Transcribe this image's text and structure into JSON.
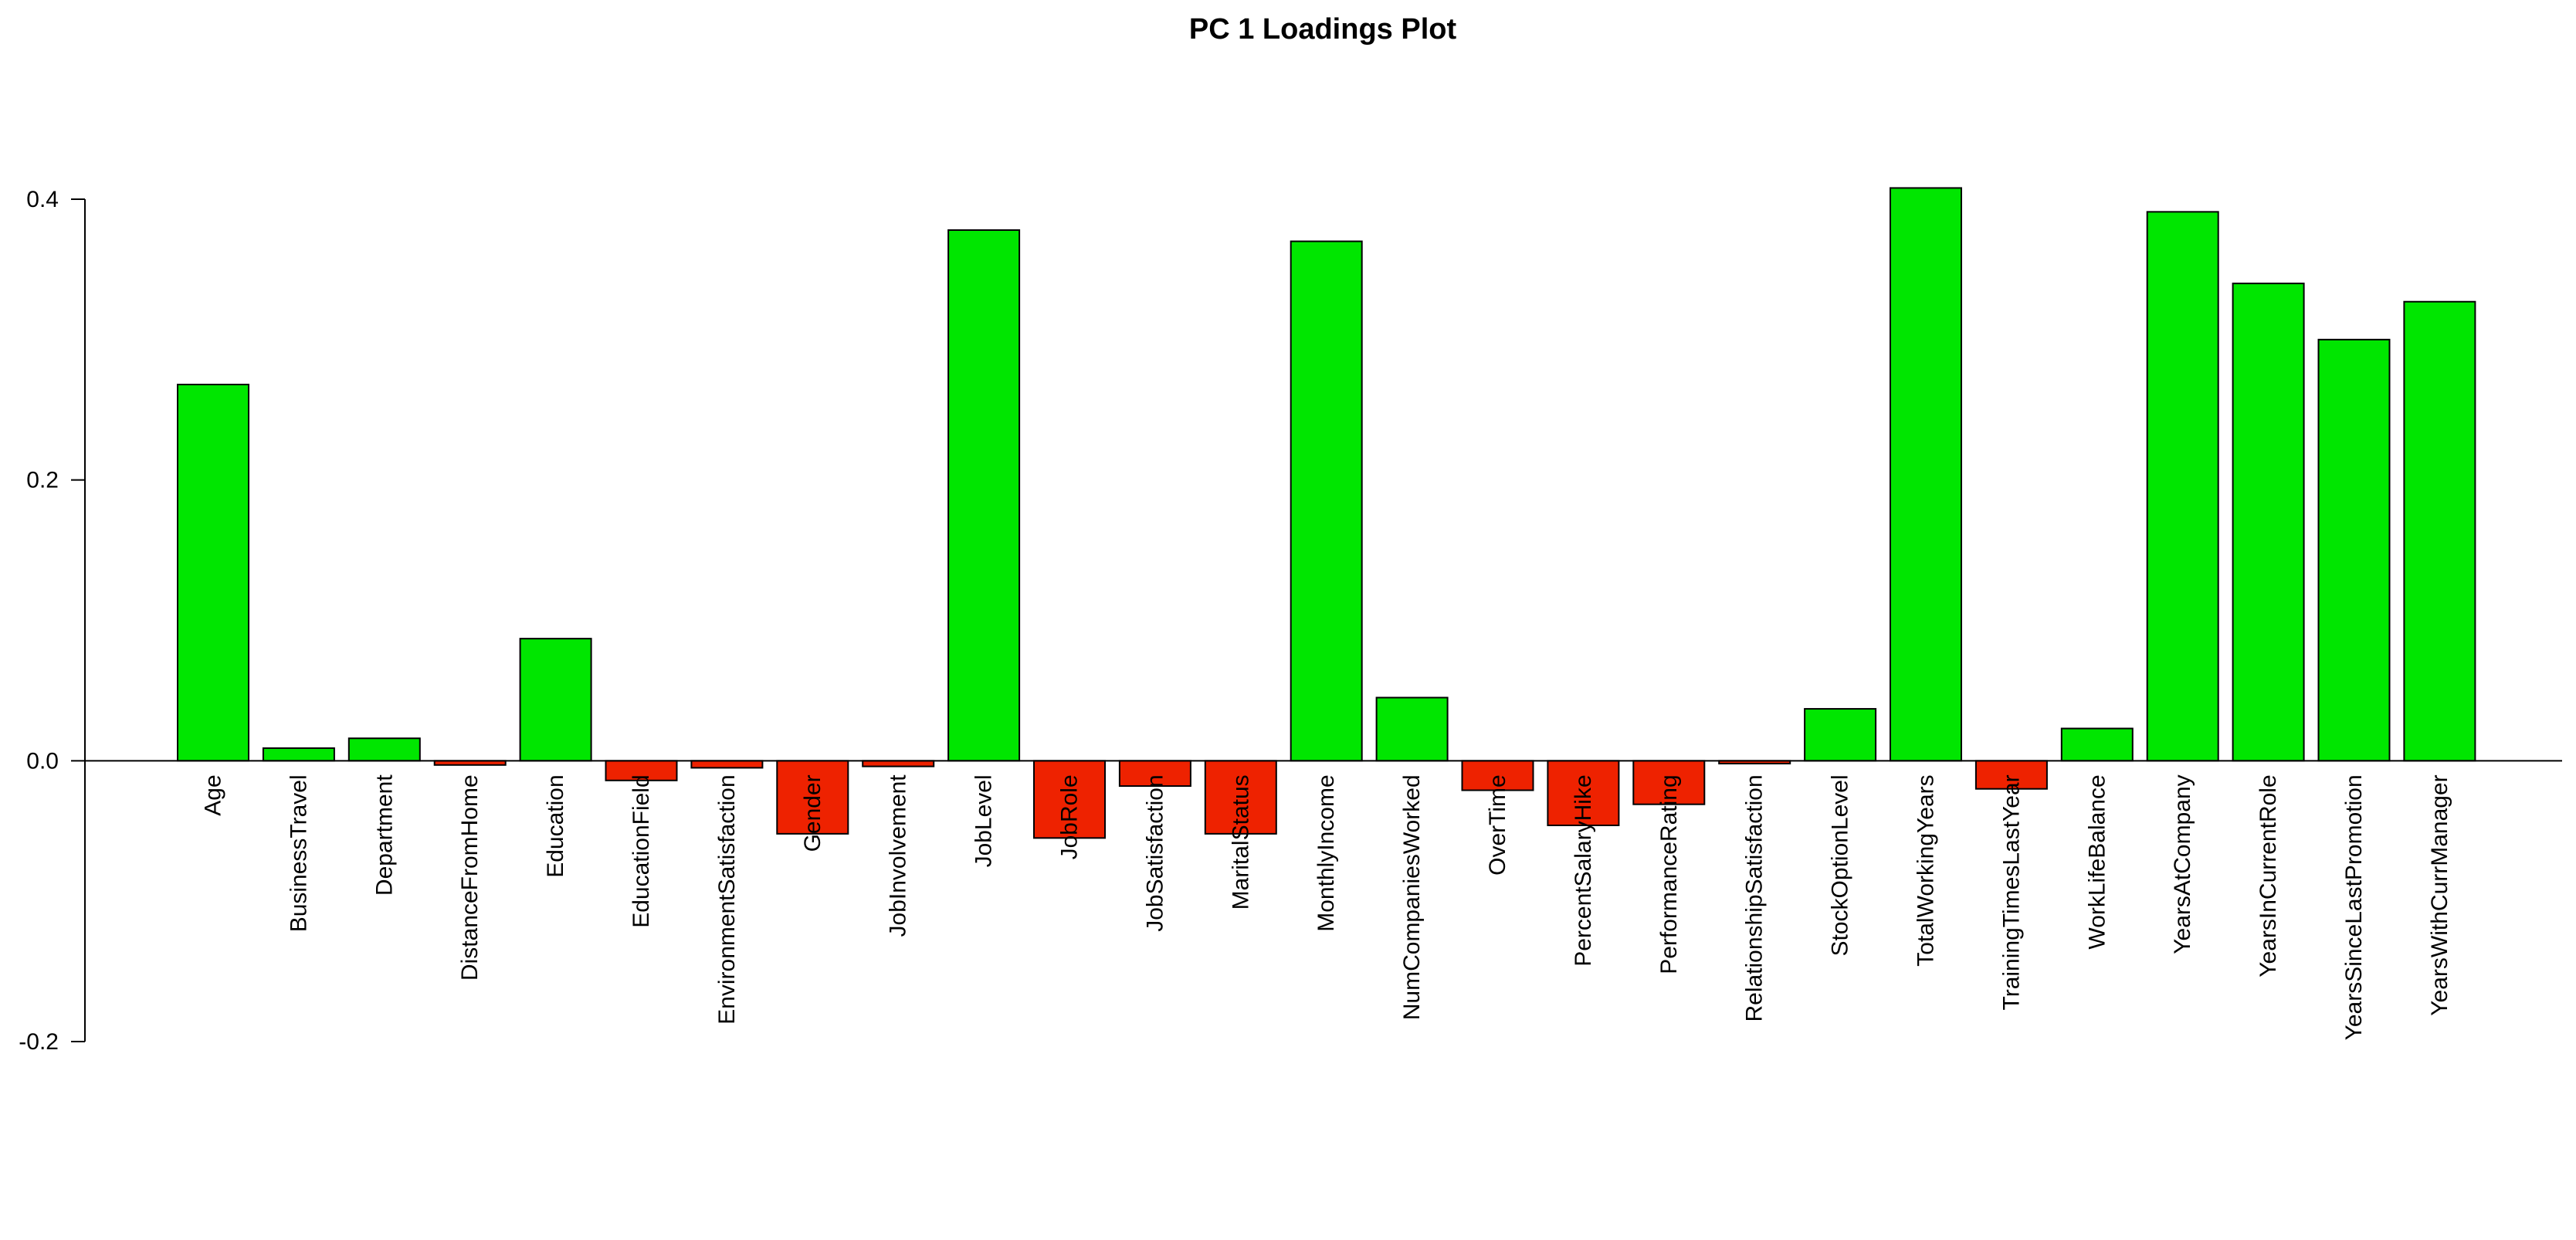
{
  "chart_data": {
    "type": "bar",
    "title": "PC 1 Loadings Plot",
    "xlabel": "",
    "ylabel": "",
    "ylim": [
      -0.2,
      0.4
    ],
    "yticks": [
      {
        "value": -0.2,
        "label": "-0.2"
      },
      {
        "value": 0.0,
        "label": "0.0"
      },
      {
        "value": 0.2,
        "label": "0.2"
      },
      {
        "value": 0.4,
        "label": "0.4"
      }
    ],
    "colors": {
      "positive": "#00e600",
      "negative": "#ee2200",
      "outline": "#000000"
    },
    "grid": false,
    "categories": [
      "Age",
      "BusinessTravel",
      "Department",
      "DistanceFromHome",
      "Education",
      "EducationField",
      "EnvironmentSatisfaction",
      "Gender",
      "JobInvolvement",
      "JobLevel",
      "JobRole",
      "JobSatisfaction",
      "MaritalStatus",
      "MonthlyIncome",
      "NumCompaniesWorked",
      "OverTime",
      "PercentSalaryHike",
      "PerformanceRating",
      "RelationshipSatisfaction",
      "StockOptionLevel",
      "TotalWorkingYears",
      "TrainingTimesLastYear",
      "WorkLifeBalance",
      "YearsAtCompany",
      "YearsInCurrentRole",
      "YearsSinceLastPromotion",
      "YearsWithCurrManager"
    ],
    "values": [
      0.268,
      0.009,
      0.016,
      -0.003,
      0.087,
      -0.014,
      -0.005,
      -0.052,
      -0.004,
      0.378,
      -0.055,
      -0.018,
      -0.052,
      0.37,
      0.045,
      -0.021,
      -0.046,
      -0.031,
      -0.002,
      0.037,
      0.408,
      -0.02,
      0.023,
      0.391,
      0.34,
      0.3,
      0.327
    ]
  }
}
